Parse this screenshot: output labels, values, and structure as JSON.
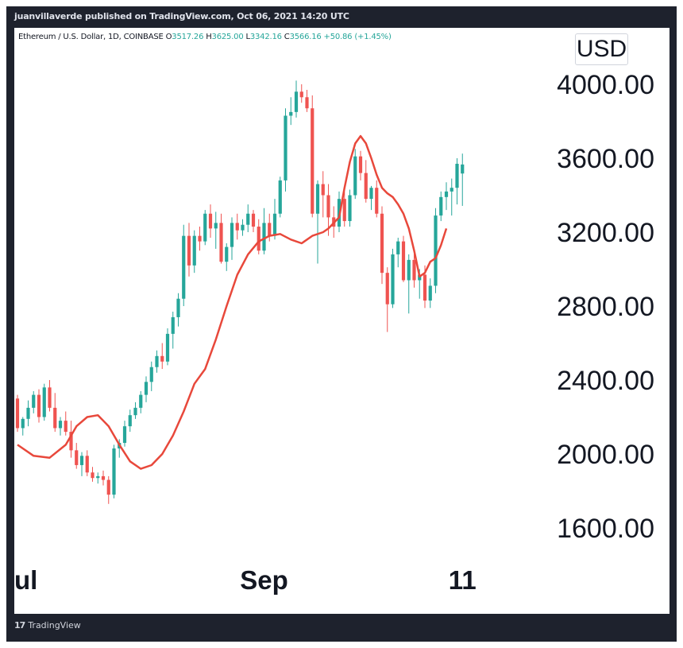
{
  "header": {
    "published": "juanvillaverde published on TradingView.com, Oct 06, 2021 14:20 UTC"
  },
  "legend": {
    "symbol": "Ethereum / U.S. Dollar, 1D, COINBASE",
    "o_label": "O",
    "o": "3517.26",
    "h_label": "H",
    "h": "3625.00",
    "l_label": "L",
    "l": "3342.16",
    "c_label": "C",
    "c": "3566.16",
    "change": "+50.86 (+1.45%)"
  },
  "currency": "USD",
  "footer": {
    "logo": "17",
    "brand": "TradingView"
  },
  "colors": {
    "up": "#26a69a",
    "down": "#ef5350",
    "ma": "#e8483b",
    "frame": "#1e222d"
  },
  "chart_data": {
    "type": "candlestick",
    "price_labels": [
      "4000.00",
      "3600.00",
      "3200.00",
      "2800.00",
      "2400.00",
      "2000.00",
      "1600.00"
    ],
    "price_ticks": [
      4000,
      3600,
      3200,
      2800,
      2400,
      2000,
      1600
    ],
    "x_labels": [
      {
        "text": "ul",
        "i": -1
      },
      {
        "text": "Sep",
        "i": 46
      },
      {
        "text": "11",
        "i": 83
      }
    ],
    "candles": [
      [
        2300,
        2320,
        2120,
        2140
      ],
      [
        2140,
        2200,
        2100,
        2190
      ],
      [
        2190,
        2290,
        2150,
        2250
      ],
      [
        2250,
        2340,
        2220,
        2320
      ],
      [
        2320,
        2350,
        2170,
        2200
      ],
      [
        2200,
        2380,
        2180,
        2360
      ],
      [
        2360,
        2400,
        2230,
        2250
      ],
      [
        2250,
        2330,
        2120,
        2140
      ],
      [
        2140,
        2200,
        2100,
        2180
      ],
      [
        2180,
        2230,
        2100,
        2120
      ],
      [
        2120,
        2180,
        1980,
        2020
      ],
      [
        2020,
        2060,
        1920,
        1940
      ],
      [
        1940,
        2010,
        1880,
        1990
      ],
      [
        1990,
        2020,
        1880,
        1900
      ],
      [
        1900,
        1930,
        1850,
        1870
      ],
      [
        1870,
        1900,
        1840,
        1880
      ],
      [
        1880,
        1910,
        1830,
        1860
      ],
      [
        1860,
        1880,
        1730,
        1780
      ],
      [
        1780,
        2050,
        1760,
        2030
      ],
      [
        2030,
        2080,
        1980,
        2060
      ],
      [
        2060,
        2180,
        2040,
        2150
      ],
      [
        2150,
        2240,
        2120,
        2210
      ],
      [
        2210,
        2280,
        2190,
        2250
      ],
      [
        2250,
        2340,
        2220,
        2320
      ],
      [
        2320,
        2420,
        2280,
        2390
      ],
      [
        2390,
        2500,
        2340,
        2470
      ],
      [
        2470,
        2560,
        2440,
        2530
      ],
      [
        2530,
        2600,
        2460,
        2500
      ],
      [
        2500,
        2680,
        2480,
        2650
      ],
      [
        2650,
        2770,
        2570,
        2740
      ],
      [
        2740,
        2870,
        2690,
        2840
      ],
      [
        2840,
        3240,
        2800,
        3180
      ],
      [
        3180,
        3250,
        2960,
        3020
      ],
      [
        3020,
        3210,
        2980,
        3180
      ],
      [
        3180,
        3230,
        3100,
        3150
      ],
      [
        3150,
        3320,
        3130,
        3300
      ],
      [
        3300,
        3350,
        3170,
        3220
      ],
      [
        3220,
        3310,
        3110,
        3250
      ],
      [
        3250,
        3300,
        3030,
        3040
      ],
      [
        3040,
        3140,
        2990,
        3120
      ],
      [
        3120,
        3280,
        3050,
        3250
      ],
      [
        3250,
        3300,
        3160,
        3210
      ],
      [
        3210,
        3270,
        3180,
        3240
      ],
      [
        3240,
        3350,
        3200,
        3300
      ],
      [
        3300,
        3320,
        3200,
        3230
      ],
      [
        3230,
        3270,
        3080,
        3100
      ],
      [
        3100,
        3330,
        3080,
        3250
      ],
      [
        3250,
        3300,
        3150,
        3180
      ],
      [
        3180,
        3380,
        3160,
        3300
      ],
      [
        3300,
        3500,
        3280,
        3480
      ],
      [
        3480,
        3870,
        3420,
        3830
      ],
      [
        3830,
        3930,
        3780,
        3850
      ],
      [
        3850,
        4020,
        3820,
        3960
      ],
      [
        3960,
        4000,
        3900,
        3930
      ],
      [
        3930,
        3970,
        3850,
        3870
      ],
      [
        3870,
        3940,
        3280,
        3300
      ],
      [
        3300,
        3480,
        3030,
        3460
      ],
      [
        3460,
        3530,
        3280,
        3400
      ],
      [
        3400,
        3460,
        3180,
        3280
      ],
      [
        3280,
        3340,
        3170,
        3230
      ],
      [
        3230,
        3420,
        3200,
        3380
      ],
      [
        3380,
        3420,
        3230,
        3260
      ],
      [
        3260,
        3430,
        3230,
        3400
      ],
      [
        3400,
        3650,
        3380,
        3610
      ],
      [
        3610,
        3640,
        3480,
        3520
      ],
      [
        3520,
        3590,
        3360,
        3380
      ],
      [
        3380,
        3450,
        3320,
        3440
      ],
      [
        3440,
        3480,
        3280,
        3300
      ],
      [
        3300,
        3340,
        2920,
        2980
      ],
      [
        2980,
        3010,
        2660,
        2810
      ],
      [
        2810,
        3110,
        2790,
        3080
      ],
      [
        3080,
        3170,
        3010,
        3150
      ],
      [
        3150,
        3180,
        2930,
        2940
      ],
      [
        2940,
        3080,
        2760,
        3050
      ],
      [
        3050,
        3100,
        2900,
        2940
      ],
      [
        2940,
        3000,
        2840,
        2970
      ],
      [
        2970,
        3020,
        2790,
        2830
      ],
      [
        2830,
        2950,
        2790,
        2910
      ],
      [
        2910,
        3330,
        2870,
        3290
      ],
      [
        3290,
        3420,
        3260,
        3390
      ],
      [
        3390,
        3470,
        3320,
        3420
      ],
      [
        3420,
        3490,
        3290,
        3440
      ],
      [
        3440,
        3600,
        3350,
        3570
      ],
      [
        3517.26,
        3625,
        3342.16,
        3566.16
      ]
    ],
    "ma": [
      [
        0,
        2050
      ],
      [
        3,
        1990
      ],
      [
        6,
        1980
      ],
      [
        9,
        2050
      ],
      [
        11,
        2150
      ],
      [
        13,
        2200
      ],
      [
        15,
        2210
      ],
      [
        17,
        2150
      ],
      [
        19,
        2050
      ],
      [
        21,
        1960
      ],
      [
        23,
        1920
      ],
      [
        25,
        1940
      ],
      [
        27,
        2000
      ],
      [
        29,
        2100
      ],
      [
        31,
        2230
      ],
      [
        33,
        2380
      ],
      [
        35,
        2460
      ],
      [
        37,
        2620
      ],
      [
        39,
        2800
      ],
      [
        41,
        2970
      ],
      [
        43,
        3080
      ],
      [
        45,
        3150
      ],
      [
        47,
        3180
      ],
      [
        49,
        3190
      ],
      [
        51,
        3160
      ],
      [
        53,
        3140
      ],
      [
        55,
        3180
      ],
      [
        57,
        3200
      ],
      [
        58,
        3220
      ],
      [
        60,
        3280
      ],
      [
        61,
        3440
      ],
      [
        62,
        3580
      ],
      [
        63,
        3680
      ],
      [
        64,
        3720
      ],
      [
        65,
        3680
      ],
      [
        66,
        3600
      ],
      [
        67,
        3510
      ],
      [
        68,
        3440
      ],
      [
        69,
        3410
      ],
      [
        70,
        3390
      ],
      [
        71,
        3350
      ],
      [
        72,
        3300
      ],
      [
        73,
        3220
      ],
      [
        74,
        3100
      ],
      [
        75,
        2960
      ],
      [
        76,
        2980
      ],
      [
        77,
        3040
      ],
      [
        78,
        3060
      ],
      [
        79,
        3130
      ],
      [
        80,
        3220
      ]
    ]
  }
}
